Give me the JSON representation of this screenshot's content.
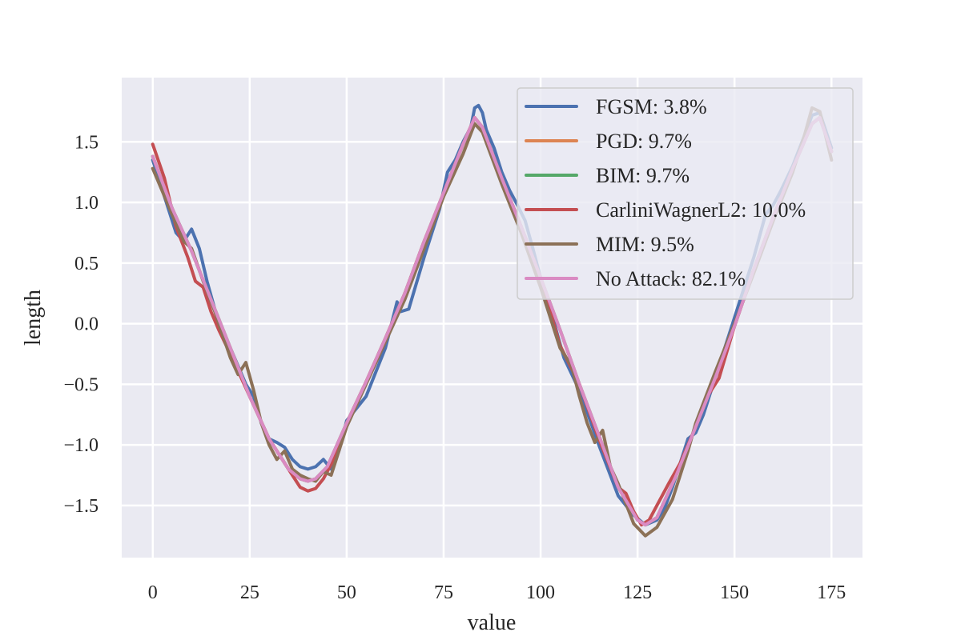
{
  "chart_data": {
    "type": "line",
    "title": "",
    "xlabel": "value",
    "ylabel": "length",
    "xlim": [
      -8,
      183
    ],
    "ylim": [
      -1.93,
      2.03
    ],
    "xticks": [
      0,
      25,
      50,
      75,
      100,
      125,
      150,
      175
    ],
    "xtick_labels": [
      "0",
      "25",
      "50",
      "75",
      "100",
      "125",
      "150",
      "175"
    ],
    "yticks": [
      -1.5,
      -1.0,
      -0.5,
      0.0,
      0.5,
      1.0,
      1.5
    ],
    "ytick_labels": [
      "−1.5",
      "−1.0",
      "−0.5",
      "0.0",
      "0.5",
      "1.0",
      "1.5"
    ],
    "grid": true,
    "background": "#eaeaf2",
    "legend_position": "top-right",
    "series": [
      {
        "name": "FGSM: 3.8%",
        "color": "#4c72b0",
        "x": [
          0,
          4,
          6,
          8,
          10,
          12,
          14,
          16,
          20,
          24,
          26,
          28,
          30,
          32,
          34,
          36,
          38,
          40,
          42,
          44,
          46,
          48,
          50,
          55,
          60,
          63,
          64,
          66,
          70,
          72,
          74,
          76,
          78,
          80,
          82,
          83,
          84,
          85,
          86,
          88,
          90,
          92,
          94,
          96,
          98,
          100,
          102,
          104,
          106,
          110,
          115,
          120,
          124,
          127,
          130,
          132,
          134,
          136,
          138,
          140,
          142,
          144,
          146,
          150,
          155,
          158,
          160,
          162,
          165,
          168,
          170,
          172,
          175
        ],
        "y": [
          1.35,
          0.95,
          0.75,
          0.68,
          0.78,
          0.62,
          0.35,
          0.12,
          -0.2,
          -0.5,
          -0.6,
          -0.82,
          -0.95,
          -0.98,
          -1.02,
          -1.12,
          -1.18,
          -1.2,
          -1.18,
          -1.12,
          -1.2,
          -1.05,
          -0.8,
          -0.6,
          -0.2,
          0.18,
          0.1,
          0.12,
          0.55,
          0.75,
          0.95,
          1.25,
          1.35,
          1.5,
          1.62,
          1.78,
          1.8,
          1.74,
          1.6,
          1.45,
          1.25,
          1.1,
          0.98,
          0.85,
          0.62,
          0.38,
          0.2,
          -0.05,
          -0.28,
          -0.55,
          -1.0,
          -1.42,
          -1.58,
          -1.66,
          -1.62,
          -1.52,
          -1.35,
          -1.15,
          -0.95,
          -0.9,
          -0.75,
          -0.55,
          -0.35,
          0.05,
          0.55,
          0.9,
          0.98,
          1.1,
          1.3,
          1.55,
          1.72,
          1.74,
          1.45
        ]
      },
      {
        "name": "PGD: 9.7%",
        "color": "#dd8452",
        "x": [
          0,
          5,
          10,
          15,
          20,
          25,
          30,
          35,
          38,
          40,
          42,
          45,
          50,
          55,
          60,
          65,
          70,
          75,
          80,
          83,
          85,
          90,
          95,
          100,
          105,
          110,
          115,
          120,
          125,
          127,
          130,
          135,
          140,
          145,
          150,
          155,
          160,
          165,
          170,
          172,
          175
        ],
        "y": [
          1.38,
          0.95,
          0.6,
          0.2,
          -0.2,
          -0.6,
          -0.95,
          -1.2,
          -1.28,
          -1.3,
          -1.28,
          -1.18,
          -0.82,
          -0.48,
          -0.12,
          0.25,
          0.68,
          1.08,
          1.48,
          1.7,
          1.62,
          1.2,
          0.8,
          0.38,
          -0.05,
          -0.5,
          -0.92,
          -1.35,
          -1.62,
          -1.66,
          -1.6,
          -1.25,
          -0.85,
          -0.45,
          -0.02,
          0.45,
          0.88,
          1.28,
          1.65,
          1.7,
          1.42
        ]
      },
      {
        "name": "BIM: 9.7%",
        "color": "#55a868",
        "x": [
          0,
          5,
          10,
          15,
          20,
          25,
          30,
          35,
          38,
          40,
          42,
          45,
          50,
          55,
          60,
          65,
          70,
          75,
          80,
          83,
          85,
          90,
          95,
          100,
          105,
          110,
          115,
          120,
          125,
          127,
          130,
          135,
          140,
          145,
          150,
          155,
          160,
          165,
          170,
          172,
          175
        ],
        "y": [
          1.38,
          0.95,
          0.6,
          0.2,
          -0.2,
          -0.6,
          -0.95,
          -1.2,
          -1.28,
          -1.3,
          -1.28,
          -1.18,
          -0.82,
          -0.48,
          -0.12,
          0.25,
          0.68,
          1.08,
          1.48,
          1.7,
          1.62,
          1.2,
          0.8,
          0.38,
          -0.05,
          -0.5,
          -0.92,
          -1.35,
          -1.62,
          -1.66,
          -1.6,
          -1.25,
          -0.85,
          -0.45,
          -0.02,
          0.45,
          0.88,
          1.28,
          1.65,
          1.7,
          1.42
        ]
      },
      {
        "name": "CarliniWagnerL2: 10.0%",
        "color": "#c44e52",
        "x": [
          0,
          3,
          6,
          9,
          11,
          13,
          15,
          17,
          20,
          25,
          30,
          33,
          36,
          38,
          40,
          42,
          44,
          47,
          50,
          55,
          60,
          65,
          70,
          75,
          80,
          83,
          85,
          90,
          95,
          100,
          105,
          110,
          115,
          120,
          122,
          124,
          126,
          128,
          130,
          133,
          136,
          140,
          143,
          146,
          150,
          155,
          160,
          165,
          170,
          172,
          175
        ],
        "y": [
          1.48,
          1.2,
          0.8,
          0.55,
          0.35,
          0.3,
          0.1,
          -0.05,
          -0.25,
          -0.6,
          -0.95,
          -1.1,
          -1.25,
          -1.35,
          -1.38,
          -1.36,
          -1.28,
          -1.1,
          -0.82,
          -0.48,
          -0.12,
          0.25,
          0.68,
          1.08,
          1.48,
          1.7,
          1.62,
          1.2,
          0.8,
          0.38,
          -0.18,
          -0.5,
          -0.95,
          -1.35,
          -1.4,
          -1.55,
          -1.66,
          -1.62,
          -1.5,
          -1.32,
          -1.15,
          -0.85,
          -0.6,
          -0.45,
          -0.02,
          0.45,
          0.88,
          1.28,
          1.65,
          1.7,
          1.42
        ]
      },
      {
        "name": "MIM: 9.5%",
        "color": "#8c7157",
        "x": [
          0,
          5,
          8,
          10,
          13,
          16,
          20,
          22,
          24,
          26,
          28,
          30,
          32,
          34,
          36,
          38,
          40,
          42,
          44,
          46,
          50,
          55,
          60,
          65,
          70,
          75,
          80,
          83,
          85,
          90,
          95,
          100,
          103,
          105,
          108,
          110,
          112,
          114,
          116,
          118,
          120,
          124,
          127,
          130,
          134,
          138,
          140,
          145,
          150,
          155,
          160,
          165,
          168,
          170,
          172,
          175
        ],
        "y": [
          1.28,
          0.9,
          0.68,
          0.62,
          0.35,
          0.1,
          -0.28,
          -0.42,
          -0.32,
          -0.55,
          -0.82,
          -1.0,
          -1.12,
          -1.05,
          -1.2,
          -1.25,
          -1.28,
          -1.3,
          -1.22,
          -1.25,
          -0.85,
          -0.5,
          -0.15,
          0.2,
          0.62,
          1.05,
          1.4,
          1.65,
          1.58,
          1.15,
          0.75,
          0.3,
          0.0,
          -0.2,
          -0.35,
          -0.6,
          -0.82,
          -0.98,
          -0.88,
          -1.18,
          -1.32,
          -1.65,
          -1.75,
          -1.68,
          -1.45,
          -1.05,
          -0.82,
          -0.4,
          0.0,
          0.42,
          0.85,
          1.25,
          1.55,
          1.78,
          1.75,
          1.35
        ]
      },
      {
        "name": "No Attack: 82.1%",
        "color": "#da8bc3",
        "x": [
          0,
          5,
          10,
          15,
          20,
          25,
          30,
          35,
          38,
          40,
          42,
          45,
          50,
          55,
          60,
          65,
          70,
          75,
          80,
          83,
          85,
          90,
          95,
          100,
          105,
          110,
          115,
          120,
          125,
          127,
          130,
          135,
          140,
          145,
          150,
          155,
          160,
          165,
          170,
          172,
          175
        ],
        "y": [
          1.38,
          0.95,
          0.6,
          0.2,
          -0.2,
          -0.6,
          -0.95,
          -1.2,
          -1.28,
          -1.3,
          -1.28,
          -1.18,
          -0.82,
          -0.48,
          -0.12,
          0.25,
          0.68,
          1.08,
          1.48,
          1.7,
          1.62,
          1.2,
          0.8,
          0.38,
          -0.05,
          -0.5,
          -0.92,
          -1.35,
          -1.62,
          -1.66,
          -1.6,
          -1.25,
          -0.85,
          -0.45,
          -0.02,
          0.45,
          0.88,
          1.28,
          1.65,
          1.7,
          1.42
        ]
      }
    ]
  }
}
